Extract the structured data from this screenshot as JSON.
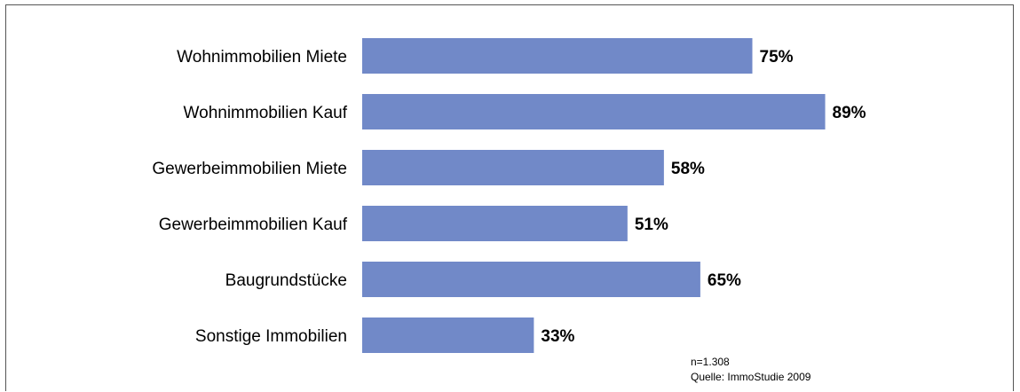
{
  "chart_data": {
    "type": "bar",
    "orientation": "horizontal",
    "categories": [
      "Wohnimmobilien Miete",
      "Wohnimmobilien Kauf",
      "Gewerbeimmobilien Miete",
      "Gewerbeimmobilien Kauf",
      "Baugrundstücke",
      "Sonstige Immobilien"
    ],
    "values": [
      75,
      89,
      58,
      51,
      65,
      33
    ],
    "value_labels": [
      "75%",
      "89%",
      "58%",
      "51%",
      "65%",
      "33%"
    ],
    "bar_color": "#7189c8",
    "title": "",
    "xlabel": "",
    "ylabel": "",
    "grid": false
  },
  "footnote": {
    "sample": "n=1.308",
    "source": "Quelle: ImmoStudie 2009"
  }
}
